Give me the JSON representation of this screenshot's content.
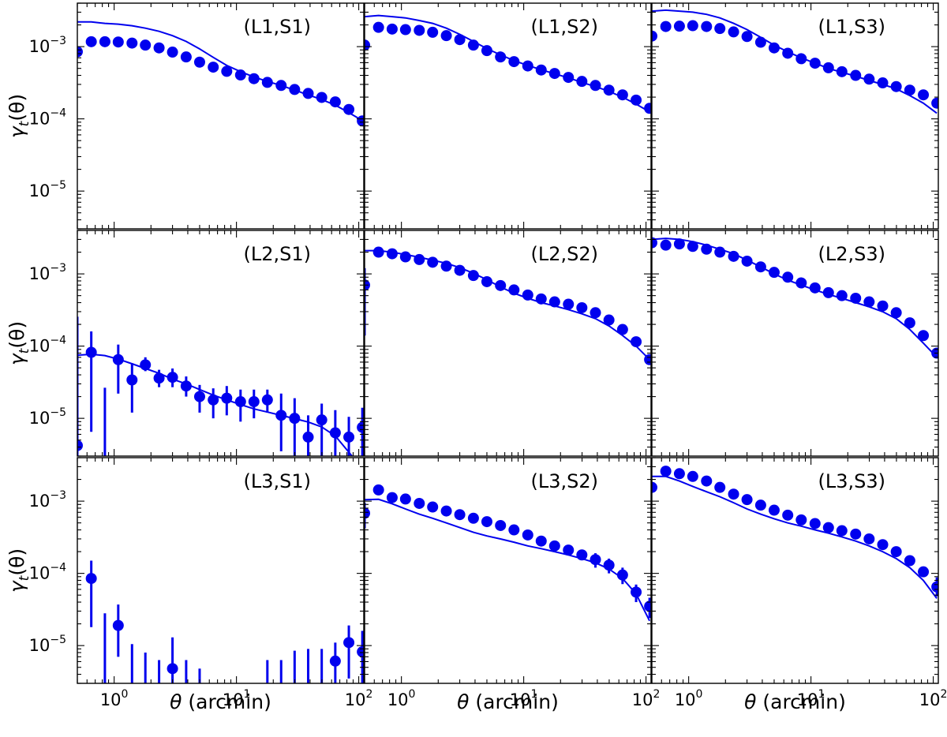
{
  "chart_data": {
    "type": "scatter",
    "layout": "3x3 grid of panels sharing x and y axes",
    "xlabel": "θ (arcmin)",
    "ylabel": "γt(θ)",
    "x_scale": "log",
    "y_scale": "log",
    "xlim": [
      0.5,
      110
    ],
    "ylim": [
      3e-06,
      0.004
    ],
    "x_ticks": [
      {
        "base": "10",
        "exp": "0"
      },
      {
        "base": "10",
        "exp": "1"
      },
      {
        "base": "10",
        "exp": "2"
      }
    ],
    "y_ticks": [
      {
        "base": "10",
        "exp": "−5"
      },
      {
        "base": "10",
        "exp": "−4"
      },
      {
        "base": "10",
        "exp": "−3"
      }
    ],
    "series_color": "#0000ee",
    "theta": [
      0.5,
      0.65,
      0.84,
      1.08,
      1.4,
      1.8,
      2.33,
      3.0,
      3.88,
      5.0,
      6.46,
      8.33,
      10.8,
      13.9,
      17.9,
      23.2,
      29.9,
      38.6,
      49.8,
      64.3,
      83.0,
      107
    ],
    "panels": [
      {
        "label": "(L1,S1)",
        "points": [
          0.00085,
          0.00117,
          0.00117,
          0.00116,
          0.00112,
          0.00105,
          0.00096,
          0.00084,
          0.00072,
          0.00061,
          0.00052,
          0.000455,
          0.000405,
          0.00036,
          0.00032,
          0.00029,
          0.000255,
          0.000225,
          0.000198,
          0.000172,
          0.000135,
          9.35e-05
        ],
        "err_lo": null,
        "err_hi": null,
        "model": [
          0.0022,
          0.0022,
          0.0021,
          0.00205,
          0.00195,
          0.0018,
          0.00163,
          0.00142,
          0.00118,
          0.00093,
          0.00071,
          0.00055,
          0.00045,
          0.00038,
          0.00033,
          0.00029,
          0.00025,
          0.000215,
          0.000185,
          0.000155,
          0.000122,
          9.5e-05
        ]
      },
      {
        "label": "(L1,S2)",
        "points": [
          0.00105,
          0.00185,
          0.00175,
          0.00172,
          0.00168,
          0.00158,
          0.00142,
          0.00125,
          0.00105,
          0.00088,
          0.00072,
          0.00062,
          0.00054,
          0.000475,
          0.000425,
          0.000375,
          0.00033,
          0.00029,
          0.00025,
          0.000215,
          0.000182,
          0.00014
        ],
        "err_lo": null,
        "err_hi": null,
        "model": [
          0.0026,
          0.0027,
          0.0026,
          0.0025,
          0.0023,
          0.0021,
          0.0018,
          0.00148,
          0.00118,
          0.00094,
          0.00077,
          0.00064,
          0.00055,
          0.00048,
          0.00042,
          0.00037,
          0.00032,
          0.00028,
          0.00024,
          0.0002,
          0.00016,
          0.000125
        ]
      },
      {
        "label": "(L1,S3)",
        "points": [
          0.0014,
          0.0019,
          0.00192,
          0.00195,
          0.0019,
          0.00178,
          0.0016,
          0.00138,
          0.00115,
          0.00096,
          0.00081,
          0.00068,
          0.00059,
          0.00051,
          0.00045,
          0.0004,
          0.000355,
          0.000315,
          0.00028,
          0.00025,
          0.000215,
          0.000165
        ],
        "err_lo": null,
        "err_hi": null,
        "model": [
          0.0031,
          0.0032,
          0.0031,
          0.003,
          0.0028,
          0.0025,
          0.0021,
          0.00172,
          0.00135,
          0.00105,
          0.00085,
          0.0007,
          0.00059,
          0.0005,
          0.00044,
          0.00039,
          0.00034,
          0.0003,
          0.00026,
          0.00021,
          0.000165,
          0.00012
        ]
      },
      {
        "label": "(L2,S1)",
        "points": [
          4.2e-06,
          8.2e-05,
          null,
          6.5e-05,
          3.4e-05,
          5.5e-05,
          3.6e-05,
          3.7e-05,
          2.8e-05,
          2e-05,
          1.8e-05,
          1.9e-05,
          1.7e-05,
          1.7e-05,
          1.8e-05,
          1.1e-05,
          1e-05,
          5.5e-06,
          9.5e-06,
          6.3e-06,
          5.5e-06,
          7.5e-06
        ],
        "err_lo": [
          1e-06,
          6.5e-06,
          1e-06,
          2.2e-05,
          1.2e-05,
          4.5e-05,
          2.7e-05,
          2.7e-05,
          2e-05,
          1.2e-05,
          1e-05,
          1.1e-05,
          9e-06,
          1e-05,
          1.2e-05,
          3.5e-06,
          3e-06,
          1e-06,
          3e-06,
          1e-06,
          1e-06,
          1e-06
        ],
        "err_hi": [
          0.000255,
          0.00016,
          2.65e-05,
          0.000105,
          5.8e-05,
          7e-05,
          4.7e-05,
          4.9e-05,
          3.8e-05,
          2.9e-05,
          2.6e-05,
          2.8e-05,
          2.5e-05,
          2.5e-05,
          2.5e-05,
          2.2e-05,
          1.9e-05,
          1.1e-05,
          1.6e-05,
          1.3e-05,
          1.05e-05,
          1.4e-05
        ],
        "model": [
          7.5e-05,
          7.7e-05,
          7.4e-05,
          6.6e-05,
          5.7e-05,
          4.9e-05,
          4.2e-05,
          3.5e-05,
          3e-05,
          2.5e-05,
          2.1e-05,
          1.8e-05,
          1.55e-05,
          1.35e-05,
          1.22e-05,
          1.1e-05,
          9.9e-06,
          8.9e-06,
          7.6e-06,
          5.7e-06,
          3.4e-06,
          2e-06
        ]
      },
      {
        "label": "(L2,S2)",
        "points": [
          0.0007,
          0.002,
          0.0019,
          0.00172,
          0.00158,
          0.00145,
          0.00128,
          0.00112,
          0.00095,
          0.00078,
          0.00069,
          0.0006,
          0.00051,
          0.00045,
          0.00041,
          0.00038,
          0.00034,
          0.00029,
          0.00023,
          0.00017,
          0.000115,
          6.5e-05
        ],
        "err_lo": [
          0.00014,
          null,
          null,
          null,
          null,
          null,
          null,
          null,
          null,
          null,
          null,
          null,
          null,
          null,
          null,
          null,
          null,
          null,
          null,
          null,
          null,
          null
        ],
        "err_hi": [
          0.0012,
          null,
          null,
          null,
          null,
          null,
          null,
          null,
          null,
          null,
          null,
          null,
          null,
          null,
          null,
          null,
          null,
          null,
          null,
          null,
          null,
          null
        ],
        "model": [
          0.0021,
          0.0021,
          0.002,
          0.00185,
          0.0017,
          0.00155,
          0.0014,
          0.00122,
          0.00102,
          0.00083,
          0.00066,
          0.00054,
          0.00046,
          0.0004,
          0.00036,
          0.00032,
          0.00028,
          0.00024,
          0.00019,
          0.00014,
          0.0001,
          6.5e-05
        ]
      },
      {
        "label": "(L2,S3)",
        "points": [
          0.0027,
          0.0025,
          0.0026,
          0.0024,
          0.0022,
          0.002,
          0.00175,
          0.0015,
          0.00125,
          0.00105,
          0.0009,
          0.00075,
          0.00064,
          0.00055,
          0.0005,
          0.00046,
          0.00041,
          0.00036,
          0.00029,
          0.00021,
          0.00014,
          8e-05
        ],
        "err_lo": null,
        "err_hi": null,
        "model": [
          0.003,
          0.0031,
          0.003,
          0.0028,
          0.0025,
          0.0022,
          0.0019,
          0.00155,
          0.00125,
          0.001,
          0.00082,
          0.0007,
          0.0006,
          0.00052,
          0.00046,
          0.0004,
          0.00035,
          0.0003,
          0.00024,
          0.00017,
          0.00011,
          7e-05
        ]
      },
      {
        "label": "(L3,S1)",
        "points": [
          null,
          8.5e-05,
          null,
          1.9e-05,
          null,
          null,
          null,
          4.8e-06,
          null,
          null,
          null,
          null,
          null,
          null,
          null,
          null,
          null,
          null,
          null,
          6.1e-06,
          1.1e-05,
          8.2e-06
        ],
        "err_lo": [
          null,
          1.8e-05,
          1e-06,
          7e-06,
          1e-06,
          1e-06,
          1e-06,
          1e-06,
          1e-06,
          1e-06,
          null,
          null,
          null,
          null,
          1e-06,
          1e-06,
          1e-06,
          1e-06,
          1e-06,
          1e-06,
          3.5e-06,
          1e-06
        ],
        "err_hi": [
          null,
          0.00015,
          2.8e-05,
          3.7e-05,
          1.05e-05,
          8e-06,
          6.3e-06,
          1.3e-05,
          6.3e-06,
          4.8e-06,
          null,
          null,
          null,
          null,
          6.3e-06,
          6.3e-06,
          8.5e-06,
          9e-06,
          9e-06,
          1.1e-05,
          1.9e-05,
          1.6e-05
        ],
        "model": null
      },
      {
        "label": "(L3,S2)",
        "points": [
          0.00068,
          0.00143,
          0.00112,
          0.00107,
          0.00093,
          0.00083,
          0.00073,
          0.00065,
          0.00058,
          0.00052,
          0.00046,
          0.0004,
          0.00034,
          0.00028,
          0.00024,
          0.00021,
          0.00018,
          0.000155,
          0.00013,
          9.5e-05,
          5.5e-05,
          3.5e-05
        ],
        "err_lo": [
          0.00042,
          null,
          null,
          null,
          null,
          null,
          null,
          null,
          null,
          null,
          null,
          null,
          null,
          null,
          null,
          null,
          null,
          0.00012,
          0.0001,
          7.1e-05,
          4e-05,
          2.4e-05
        ],
        "err_hi": [
          0.00095,
          null,
          null,
          null,
          null,
          null,
          null,
          null,
          null,
          null,
          null,
          null,
          null,
          null,
          null,
          null,
          null,
          0.00019,
          0.00016,
          0.00012,
          7e-05,
          4.6e-05
        ],
        "model": [
          0.00105,
          0.00106,
          0.00092,
          0.00078,
          0.00066,
          0.00058,
          0.0005,
          0.00043,
          0.00037,
          0.00033,
          0.0003,
          0.00027,
          0.00024,
          0.00022,
          0.0002,
          0.00018,
          0.00016,
          0.00014,
          0.000115,
          8.5e-05,
          5.2e-05,
          2.2e-05
        ]
      },
      {
        "label": "(L3,S3)",
        "points": [
          0.00155,
          0.0026,
          0.0024,
          0.0022,
          0.0019,
          0.00155,
          0.00125,
          0.00105,
          0.00088,
          0.00075,
          0.00064,
          0.00055,
          0.00049,
          0.00043,
          0.00039,
          0.00035,
          0.0003,
          0.00025,
          0.0002,
          0.00015,
          0.000105,
          6.5e-05
        ],
        "err_lo": [
          null,
          null,
          null,
          null,
          null,
          null,
          null,
          null,
          null,
          null,
          null,
          null,
          null,
          null,
          null,
          null,
          null,
          null,
          null,
          null,
          null,
          4.8e-05
        ],
        "err_hi": [
          null,
          null,
          null,
          null,
          null,
          null,
          null,
          null,
          null,
          null,
          null,
          null,
          null,
          null,
          null,
          null,
          null,
          null,
          null,
          null,
          null,
          8.8e-05
        ],
        "model": [
          0.0022,
          0.0022,
          0.0019,
          0.0016,
          0.00135,
          0.00115,
          0.00095,
          0.00078,
          0.00066,
          0.00057,
          0.0005,
          0.00045,
          0.0004,
          0.00036,
          0.00032,
          0.00028,
          0.00024,
          0.0002,
          0.00016,
          0.00012,
          8e-05,
          4.5e-05
        ]
      }
    ]
  }
}
